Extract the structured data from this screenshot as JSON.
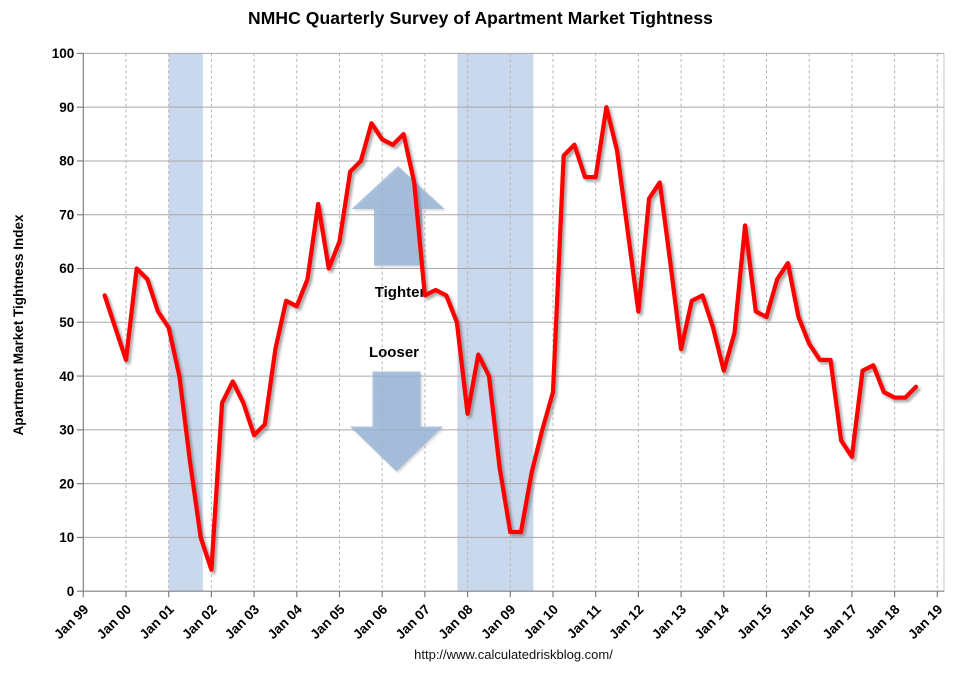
{
  "title": "NMHC Quarterly Survey of Apartment Market Tightness",
  "y_axis": {
    "title": "Apartment Market Tightness Index",
    "ticks": [
      0,
      10,
      20,
      30,
      40,
      50,
      60,
      70,
      80,
      90,
      100
    ]
  },
  "x_axis": {
    "tick_labels": [
      "Jan 99",
      "Jan 00",
      "Jan 01",
      "Jan 02",
      "Jan 03",
      "Jan 04",
      "Jan 05",
      "Jan 06",
      "Jan 07",
      "Jan 08",
      "Jan 09",
      "Jan 10",
      "Jan 11",
      "Jan 12",
      "Jan 13",
      "Jan 14",
      "Jan 15",
      "Jan 16",
      "Jan 17",
      "Jan 18",
      "Jan 19"
    ],
    "start_year": 1999,
    "end_year": 2019
  },
  "reference_line": {
    "value": 50
  },
  "annotations": {
    "tighter": "Tighter",
    "looser": "Looser"
  },
  "recession_bands": [
    {
      "start": 2001.0,
      "end": 2001.8
    },
    {
      "start": 2007.76,
      "end": 2009.54
    }
  ],
  "footer": {
    "url": "http://www.calculatedriskblog.com/"
  },
  "colors": {
    "line": "#ff0000",
    "reference_line": "#000000",
    "band": "#c9d8ec",
    "arrow": "#95b3d7",
    "grid_h": "#a8a8a8",
    "grid_v": "#b6b6b6",
    "axis": "#808080",
    "text": "#000000"
  },
  "chart_data": {
    "type": "line",
    "title": "NMHC Quarterly Survey of Apartment Market Tightness",
    "ylabel": "Apartment Market Tightness Index",
    "xlabel": "",
    "series_name": "Apartment Market Tightness Index",
    "frequency": "quarterly",
    "x_start": 1999.5,
    "x_step": 0.25,
    "x_end": 2018.5,
    "ylim": [
      0,
      100
    ],
    "xlim": [
      1999,
      2019
    ],
    "grid": true,
    "legend": false,
    "values": [
      55,
      49,
      43,
      60,
      58,
      52,
      49,
      40,
      24,
      10,
      4,
      35,
      39,
      35,
      29,
      31,
      45,
      54,
      53,
      58,
      72,
      60,
      65,
      78,
      80,
      87,
      84,
      83,
      85,
      76,
      55,
      56,
      55,
      50,
      33,
      44,
      40,
      23,
      11,
      11,
      22,
      30,
      37,
      81,
      83,
      77,
      77,
      90,
      82,
      67,
      52,
      73,
      76,
      61,
      45,
      54,
      55,
      49,
      41,
      48,
      68,
      52,
      51,
      58,
      61,
      51,
      46,
      43,
      43,
      28,
      25,
      41,
      42,
      37,
      36,
      36,
      38
    ]
  }
}
